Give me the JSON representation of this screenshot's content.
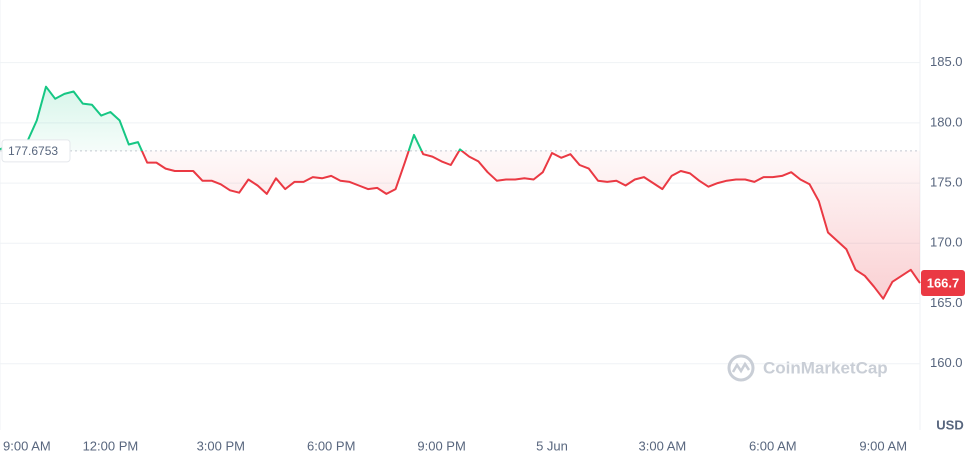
{
  "chart_data": {
    "type": "line",
    "x": [
      540,
      555,
      570,
      585,
      600,
      615,
      630,
      645,
      660,
      675,
      690,
      705,
      720,
      735,
      750,
      765,
      780,
      795,
      810,
      825,
      840,
      855,
      870,
      885,
      900,
      915,
      930,
      945,
      960,
      975,
      990,
      1005,
      1020,
      1035,
      1050,
      1065,
      1080,
      1095,
      1110,
      1125,
      1140,
      1155,
      1170,
      1185,
      1200,
      1215,
      1230,
      1245,
      1260,
      1275,
      1290,
      1305,
      1320,
      1335,
      1350,
      1365,
      1380,
      1395,
      1410,
      1425,
      1440,
      1455,
      1470,
      1485,
      1500,
      1515,
      1530,
      1545,
      1560,
      1575,
      1590,
      1605,
      1620,
      1635,
      1650,
      1665,
      1680,
      1695,
      1710,
      1725,
      1740,
      1755,
      1770,
      1785,
      1800,
      1815,
      1830,
      1845,
      1860,
      1875,
      1890,
      1905,
      1920,
      1935,
      1950,
      1965,
      1980,
      1995,
      2010,
      2025,
      2040
    ],
    "values": [
      177.8,
      178.2,
      178.3,
      178.5,
      180.2,
      183.0,
      182.0,
      182.4,
      182.6,
      181.6,
      181.5,
      180.6,
      180.9,
      180.2,
      178.2,
      178.4,
      176.7,
      176.7,
      176.2,
      176.0,
      176.0,
      176.0,
      175.2,
      175.2,
      174.9,
      174.4,
      174.2,
      175.3,
      174.8,
      174.1,
      175.4,
      174.5,
      175.1,
      175.1,
      175.5,
      175.4,
      175.6,
      175.2,
      175.1,
      174.8,
      174.5,
      174.6,
      174.1,
      174.5,
      176.7,
      179.0,
      177.4,
      177.2,
      176.8,
      176.5,
      177.8,
      177.2,
      176.8,
      175.9,
      175.2,
      175.3,
      175.3,
      175.4,
      175.3,
      175.9,
      177.5,
      177.1,
      177.4,
      176.5,
      176.2,
      175.2,
      175.1,
      175.2,
      174.8,
      175.3,
      175.5,
      175.0,
      174.5,
      175.6,
      176.0,
      175.8,
      175.2,
      174.7,
      175.0,
      175.2,
      175.3,
      175.3,
      175.1,
      175.5,
      175.5,
      175.6,
      175.9,
      175.3,
      174.9,
      173.5,
      170.9,
      170.2,
      169.5,
      167.8,
      167.3,
      166.4,
      165.4,
      166.8,
      167.3,
      167.8,
      166.7
    ],
    "xlim": [
      540,
      2040
    ],
    "xticks": [
      {
        "value": 540,
        "label": "9:00 AM"
      },
      {
        "value": 720,
        "label": "12:00 PM"
      },
      {
        "value": 900,
        "label": "3:00 PM"
      },
      {
        "value": 1080,
        "label": "6:00 PM"
      },
      {
        "value": 1260,
        "label": "9:00 PM"
      },
      {
        "value": 1440,
        "label": "5 Jun"
      },
      {
        "value": 1620,
        "label": "3:00 AM"
      },
      {
        "value": 1800,
        "label": "6:00 AM"
      },
      {
        "value": 1980,
        "label": "9:00 AM"
      }
    ],
    "ylim": [
      154.5,
      190.2
    ],
    "yticks": [
      {
        "value": 160,
        "label": "160.0"
      },
      {
        "value": 165,
        "label": "165.0"
      },
      {
        "value": 170,
        "label": "170.0"
      },
      {
        "value": 175,
        "label": "175.0"
      },
      {
        "value": 180,
        "label": "180.0"
      },
      {
        "value": 185,
        "label": "185.0"
      }
    ],
    "baseline": 177.6753,
    "last_price": 166.7,
    "currency": "USD",
    "watermark": "CoinMarketCap",
    "up_color": "#16c784",
    "down_color": "#ea3943",
    "grid": true
  }
}
